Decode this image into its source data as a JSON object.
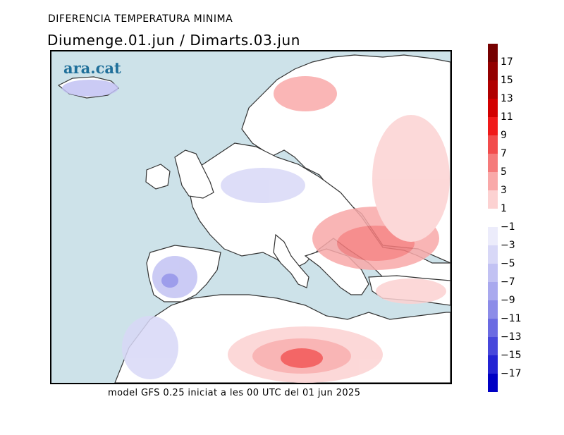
{
  "header": {
    "top_title": "DIFERENCIA TEMPERATURA MINIMA",
    "main_title": "Diumenge.01.jun  /  Dimarts.03.jun"
  },
  "brand": {
    "logo_text": "ara.cat"
  },
  "footer": {
    "caption": "model GFS 0.25 iniciat a les 00 UTC del 01 jun 2025"
  },
  "map": {
    "region": "Europe / North Africa",
    "sea_color": "#cde2e9",
    "land_color": "#ffffff"
  },
  "legend": {
    "colors": {
      "warm": [
        "#fcd2d2",
        "#f9a9a9",
        "#f57b7b",
        "#f24c4c",
        "#f01a1a",
        "#d20000",
        "#b00000",
        "#930000",
        "#760000"
      ],
      "cold": [
        "#ececfb",
        "#d8d8f7",
        "#c2c2f3",
        "#a9a9ee",
        "#8c8ce8",
        "#6b6be2",
        "#4747db",
        "#2323d3",
        "#0000c4"
      ]
    },
    "labels": [
      "17",
      "15",
      "13",
      "11",
      "9",
      "7",
      "5",
      "3",
      "1",
      "−1",
      "−3",
      "−5",
      "−7",
      "−9",
      "−11",
      "−13",
      "−15",
      "−17"
    ]
  }
}
